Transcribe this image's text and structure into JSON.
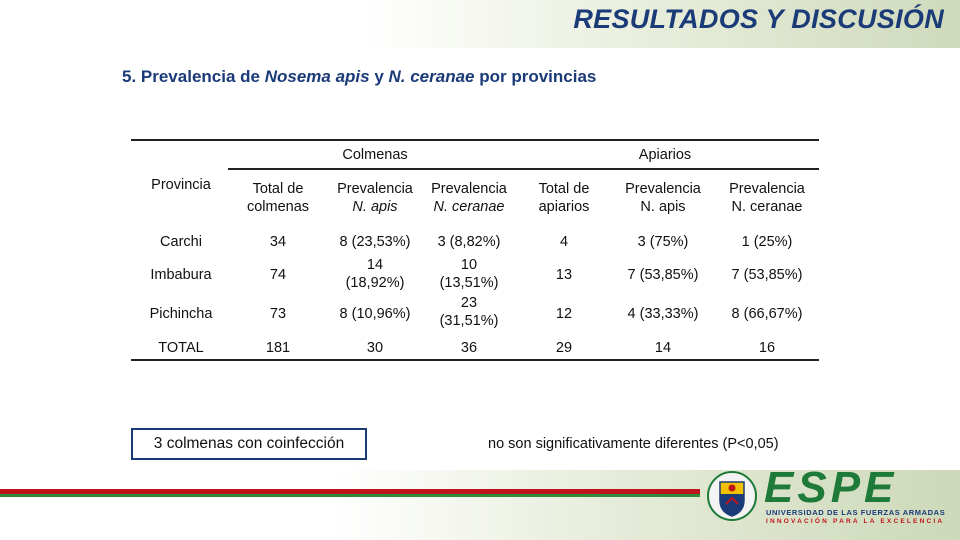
{
  "slide": {
    "title": "RESULTADOS Y DISCUSIÓN",
    "subtitle": {
      "prefix": "5. Prevalencia de ",
      "species1": "Nosema apis",
      "mid": " y ",
      "species2": "N. ceranae",
      "suffix": " por provincias"
    }
  },
  "table": {
    "group_headers": {
      "colmenas": "Colmenas",
      "apiarios": "Apiarios"
    },
    "row_header": "Provincia",
    "columns": {
      "total_colmenas": [
        "Total de",
        "colmenas"
      ],
      "prev_apis_col": [
        "Prevalencia",
        "N. apis"
      ],
      "prev_ceranae_col": [
        "Prevalencia",
        "N. ceranae"
      ],
      "total_apiarios": [
        "Total de",
        "apiarios"
      ],
      "prev_apis_ap": [
        "Prevalencia",
        "N. apis"
      ],
      "prev_ceranae_ap": [
        "Prevalencia",
        "N. ceranae"
      ]
    },
    "rows": [
      {
        "provincia": "Carchi",
        "total_colmenas": "34",
        "prev_apis_col": [
          "8 (23,53%)"
        ],
        "prev_ceranae_col": [
          "3 (8,82%)"
        ],
        "total_apiarios": "4",
        "prev_apis_ap": "3 (75%)",
        "prev_ceranae_ap": "1 (25%)"
      },
      {
        "provincia": "Imbabura",
        "total_colmenas": "74",
        "prev_apis_col": [
          "14",
          "(18,92%)"
        ],
        "prev_ceranae_col": [
          "10",
          "(13,51%)"
        ],
        "total_apiarios": "13",
        "prev_apis_ap": "7 (53,85%)",
        "prev_ceranae_ap": "7 (53,85%)"
      },
      {
        "provincia": "Pichincha",
        "total_colmenas": "73",
        "prev_apis_col": [
          "8 (10,96%)"
        ],
        "prev_ceranae_col": [
          "23",
          "(31,51%)"
        ],
        "total_apiarios": "12",
        "prev_apis_ap": "4 (33,33%)",
        "prev_ceranae_ap": "8 (66,67%)"
      },
      {
        "provincia": "TOTAL",
        "total_colmenas": "181",
        "prev_apis_col": [
          "30"
        ],
        "prev_ceranae_col": [
          "36"
        ],
        "total_apiarios": "29",
        "prev_apis_ap": "14",
        "prev_ceranae_ap": "16"
      }
    ]
  },
  "notes": {
    "boxed": "3 colmenas con coinfección",
    "significance": "no son significativamente diferentes (P<0,05)"
  },
  "logo": {
    "word": "ESPE",
    "line1": "UNIVERSIDAD DE LAS FUERZAS ARMADAS",
    "line2": "INNOVACIÓN PARA LA EXCELENCIA"
  },
  "colors": {
    "title_blue": "#1a3a78",
    "brand_green": "#1e7a38",
    "brand_red": "#c0141c"
  }
}
